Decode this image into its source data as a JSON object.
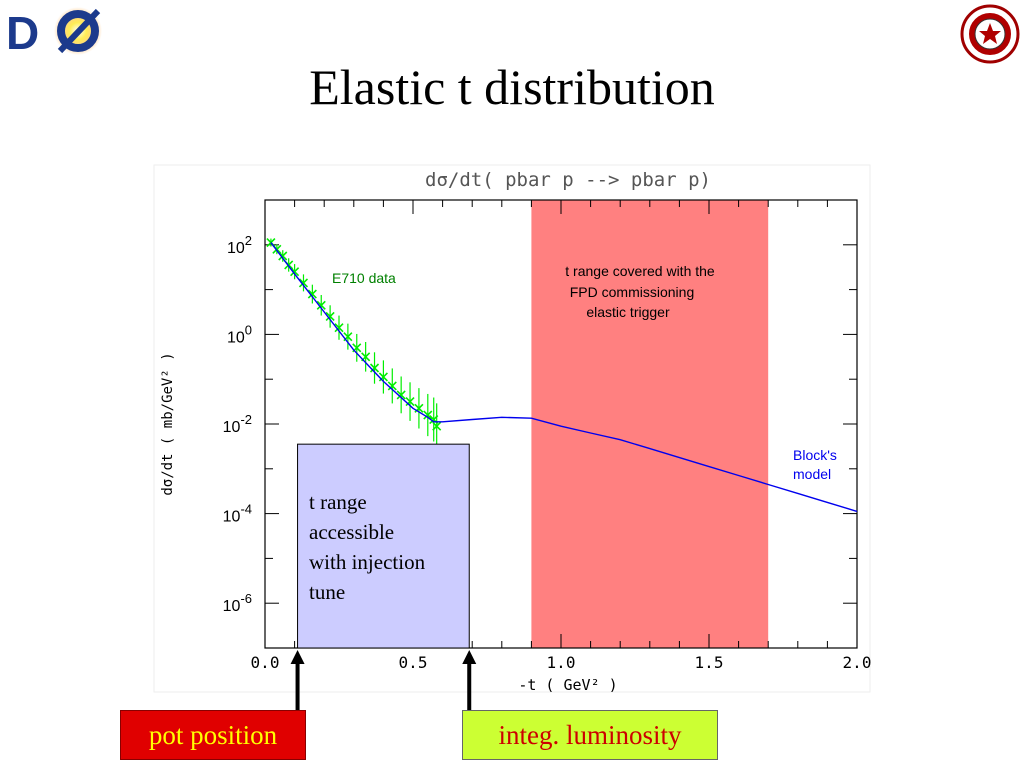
{
  "slide": {
    "title": "Elastic t distribution",
    "logo_left": "DØ",
    "logo_right_icon": "university-seal-icon"
  },
  "chart_data": {
    "type": "line",
    "title": "dσ/dt( pbar p --> pbar p)",
    "xlabel": "-t  ( GeV² )",
    "ylabel": "dσ/dt  ( mb/GeV² )",
    "xlim": [
      0.0,
      2.0
    ],
    "ylim_log10": [
      -7,
      3
    ],
    "yscale": "log",
    "x_ticks": [
      "0.0",
      "0.5",
      "1.0",
      "1.5",
      "2.0"
    ],
    "y_ticks": [
      {
        "mantissa": "10",
        "exp": "2",
        "log10": 2
      },
      {
        "mantissa": "10",
        "exp": "0",
        "log10": 0
      },
      {
        "mantissa": "10",
        "exp": "-2",
        "log10": -2
      },
      {
        "mantissa": "10",
        "exp": "-4",
        "log10": -4
      },
      {
        "mantissa": "10",
        "exp": "-6",
        "log10": -6
      }
    ],
    "series": [
      {
        "name": "Block's model",
        "color": "#0000ee",
        "x": [
          0.02,
          0.1,
          0.2,
          0.3,
          0.4,
          0.5,
          0.55,
          0.57,
          0.6,
          0.7,
          0.8,
          0.9,
          1.0,
          1.1,
          1.2,
          1.3,
          1.4,
          1.5,
          1.6,
          1.7,
          1.8,
          1.9,
          2.0
        ],
        "y_log10": [
          2.05,
          1.35,
          0.5,
          -0.35,
          -1.05,
          -1.65,
          -1.85,
          -1.95,
          -1.95,
          -1.9,
          -1.85,
          -1.87,
          -2.05,
          -2.2,
          -2.35,
          -2.55,
          -2.75,
          -2.95,
          -3.15,
          -3.35,
          -3.55,
          -3.75,
          -3.95
        ]
      },
      {
        "name": "E710 data",
        "color": "#00ee00",
        "x": [
          0.02,
          0.04,
          0.06,
          0.08,
          0.1,
          0.13,
          0.16,
          0.19,
          0.22,
          0.25,
          0.28,
          0.31,
          0.34,
          0.37,
          0.4,
          0.43,
          0.46,
          0.49,
          0.52,
          0.55,
          0.57,
          0.58
        ],
        "y_log10": [
          2.05,
          1.9,
          1.75,
          1.55,
          1.4,
          1.15,
          0.9,
          0.65,
          0.4,
          0.15,
          -0.05,
          -0.3,
          -0.5,
          -0.75,
          -0.95,
          -1.15,
          -1.35,
          -1.5,
          -1.65,
          -1.8,
          -1.9,
          -2.05
        ]
      }
    ],
    "annotations": {
      "e710_label": "E710 data",
      "model_label_1": "Block's",
      "model_label_2": "model",
      "fpd_lines": [
        "t range covered with the",
        "FPD commissioning",
        "elastic trigger"
      ]
    },
    "regions": [
      {
        "name": "FPD commissioning elastic trigger range",
        "x_range": [
          0.9,
          1.7
        ],
        "color": "#ff8080"
      },
      {
        "name": "injection tune range",
        "x_range": [
          0.11,
          0.69
        ],
        "ylog_range": [
          -7,
          -2.45
        ],
        "color": "#ccccff"
      }
    ],
    "injection_text": "t range\naccessible\nwith injection\ntune",
    "markers": {
      "pot_position": {
        "label": "pot position",
        "x": 0.11
      },
      "integ_luminosity": {
        "label": "integ. luminosity",
        "x": 0.69
      }
    }
  }
}
